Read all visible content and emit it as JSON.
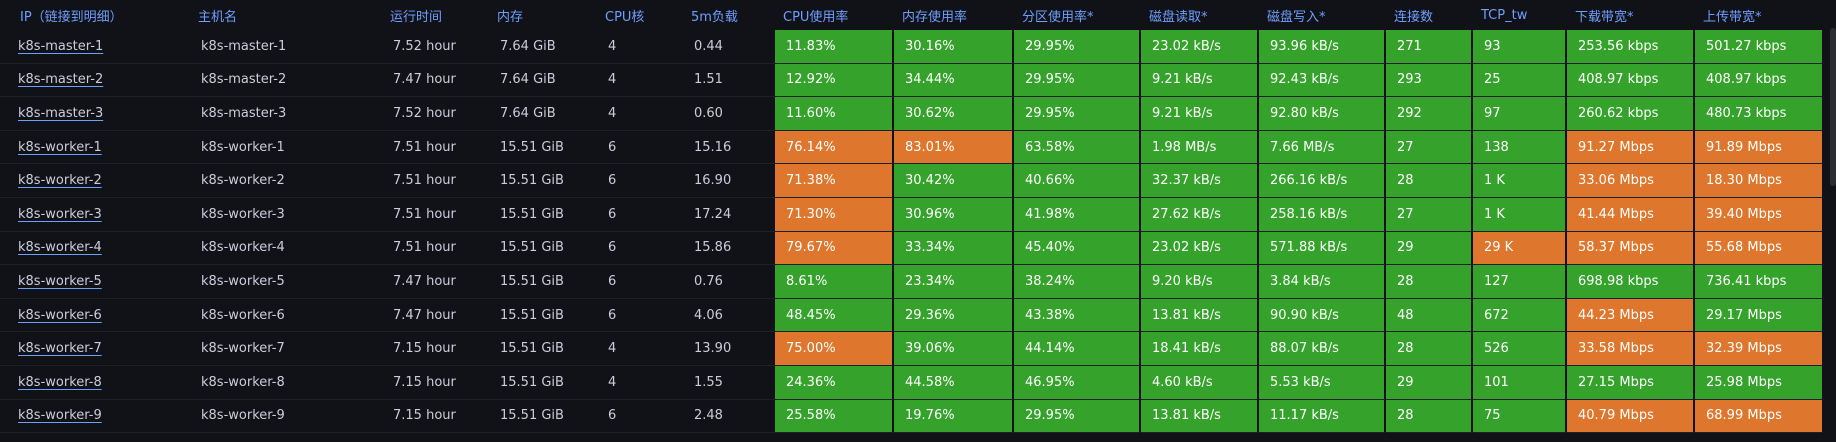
{
  "columns": [
    "IP（链接到明细）",
    "主机名",
    "运行时间",
    "内存",
    "CPU核",
    "5m负载",
    "CPU使用率",
    "内存使用率",
    "分区使用率*",
    "磁盘读取*",
    "磁盘写入*",
    "连接数",
    "TCP_tw",
    "下载带宽*",
    "上传带宽*"
  ],
  "colors": {
    "ok": "#35a32b",
    "warn": "#de772d",
    "header": "#6e9fff",
    "background": "#111217"
  },
  "rows": [
    {
      "ip": "k8s-master-1",
      "hostname": "k8s-master-1",
      "uptime": "7.52 hour",
      "memory": "7.64 GiB",
      "cpu_cores": "4",
      "load5": "0.44",
      "cpu_usage": "11.83%",
      "cpu_status": "ok",
      "mem_usage": "30.16%",
      "mem_status": "ok",
      "partition_usage": "29.95%",
      "part_status": "ok",
      "disk_read": "23.02 kB/s",
      "read_status": "ok",
      "disk_write": "93.96 kB/s",
      "write_status": "ok",
      "connections": "271",
      "conn_status": "ok",
      "tcp_tw": "93",
      "tw_status": "ok",
      "download": "253.56 kbps",
      "down_status": "ok",
      "upload": "501.27 kbps",
      "up_status": "ok"
    },
    {
      "ip": "k8s-master-2",
      "hostname": "k8s-master-2",
      "uptime": "7.47 hour",
      "memory": "7.64 GiB",
      "cpu_cores": "4",
      "load5": "1.51",
      "cpu_usage": "12.92%",
      "cpu_status": "ok",
      "mem_usage": "34.44%",
      "mem_status": "ok",
      "partition_usage": "29.95%",
      "part_status": "ok",
      "disk_read": "9.21 kB/s",
      "read_status": "ok",
      "disk_write": "92.43 kB/s",
      "write_status": "ok",
      "connections": "293",
      "conn_status": "ok",
      "tcp_tw": "25",
      "tw_status": "ok",
      "download": "408.97 kbps",
      "down_status": "ok",
      "upload": "408.97 kbps",
      "up_status": "ok"
    },
    {
      "ip": "k8s-master-3",
      "hostname": "k8s-master-3",
      "uptime": "7.52 hour",
      "memory": "7.64 GiB",
      "cpu_cores": "4",
      "load5": "0.60",
      "cpu_usage": "11.60%",
      "cpu_status": "ok",
      "mem_usage": "30.62%",
      "mem_status": "ok",
      "partition_usage": "29.95%",
      "part_status": "ok",
      "disk_read": "9.21 kB/s",
      "read_status": "ok",
      "disk_write": "92.80 kB/s",
      "write_status": "ok",
      "connections": "292",
      "conn_status": "ok",
      "tcp_tw": "97",
      "tw_status": "ok",
      "download": "260.62 kbps",
      "down_status": "ok",
      "upload": "480.73 kbps",
      "up_status": "ok"
    },
    {
      "ip": "k8s-worker-1",
      "hostname": "k8s-worker-1",
      "uptime": "7.51 hour",
      "memory": "15.51 GiB",
      "cpu_cores": "6",
      "load5": "15.16",
      "cpu_usage": "76.14%",
      "cpu_status": "warn",
      "mem_usage": "83.01%",
      "mem_status": "warn",
      "partition_usage": "63.58%",
      "part_status": "ok",
      "disk_read": "1.98 MB/s",
      "read_status": "ok",
      "disk_write": "7.66 MB/s",
      "write_status": "ok",
      "connections": "27",
      "conn_status": "ok",
      "tcp_tw": "138",
      "tw_status": "ok",
      "download": "91.27 Mbps",
      "down_status": "warn",
      "upload": "91.89 Mbps",
      "up_status": "warn"
    },
    {
      "ip": "k8s-worker-2",
      "hostname": "k8s-worker-2",
      "uptime": "7.51 hour",
      "memory": "15.51 GiB",
      "cpu_cores": "6",
      "load5": "16.90",
      "cpu_usage": "71.38%",
      "cpu_status": "warn",
      "mem_usage": "30.42%",
      "mem_status": "ok",
      "partition_usage": "40.66%",
      "part_status": "ok",
      "disk_read": "32.37 kB/s",
      "read_status": "ok",
      "disk_write": "266.16 kB/s",
      "write_status": "ok",
      "connections": "28",
      "conn_status": "ok",
      "tcp_tw": "1 K",
      "tw_status": "ok",
      "download": "33.06 Mbps",
      "down_status": "warn",
      "upload": "18.30 Mbps",
      "up_status": "warn"
    },
    {
      "ip": "k8s-worker-3",
      "hostname": "k8s-worker-3",
      "uptime": "7.51 hour",
      "memory": "15.51 GiB",
      "cpu_cores": "6",
      "load5": "17.24",
      "cpu_usage": "71.30%",
      "cpu_status": "warn",
      "mem_usage": "30.96%",
      "mem_status": "ok",
      "partition_usage": "41.98%",
      "part_status": "ok",
      "disk_read": "27.62 kB/s",
      "read_status": "ok",
      "disk_write": "258.16 kB/s",
      "write_status": "ok",
      "connections": "27",
      "conn_status": "ok",
      "tcp_tw": "1 K",
      "tw_status": "ok",
      "download": "41.44 Mbps",
      "down_status": "warn",
      "upload": "39.40 Mbps",
      "up_status": "warn"
    },
    {
      "ip": "k8s-worker-4",
      "hostname": "k8s-worker-4",
      "uptime": "7.51 hour",
      "memory": "15.51 GiB",
      "cpu_cores": "6",
      "load5": "15.86",
      "cpu_usage": "79.67%",
      "cpu_status": "warn",
      "mem_usage": "33.34%",
      "mem_status": "ok",
      "partition_usage": "45.40%",
      "part_status": "ok",
      "disk_read": "23.02 kB/s",
      "read_status": "ok",
      "disk_write": "571.88 kB/s",
      "write_status": "ok",
      "connections": "29",
      "conn_status": "ok",
      "tcp_tw": "29 K",
      "tw_status": "warn",
      "download": "58.37 Mbps",
      "down_status": "warn",
      "upload": "55.68 Mbps",
      "up_status": "warn"
    },
    {
      "ip": "k8s-worker-5",
      "hostname": "k8s-worker-5",
      "uptime": "7.47 hour",
      "memory": "15.51 GiB",
      "cpu_cores": "6",
      "load5": "0.76",
      "cpu_usage": "8.61%",
      "cpu_status": "ok",
      "mem_usage": "23.34%",
      "mem_status": "ok",
      "partition_usage": "38.24%",
      "part_status": "ok",
      "disk_read": "9.20 kB/s",
      "read_status": "ok",
      "disk_write": "3.84 kB/s",
      "write_status": "ok",
      "connections": "28",
      "conn_status": "ok",
      "tcp_tw": "127",
      "tw_status": "ok",
      "download": "698.98 kbps",
      "down_status": "ok",
      "upload": "736.41 kbps",
      "up_status": "ok"
    },
    {
      "ip": "k8s-worker-6",
      "hostname": "k8s-worker-6",
      "uptime": "7.47 hour",
      "memory": "15.51 GiB",
      "cpu_cores": "6",
      "load5": "4.06",
      "cpu_usage": "48.45%",
      "cpu_status": "ok",
      "mem_usage": "29.36%",
      "mem_status": "ok",
      "partition_usage": "43.38%",
      "part_status": "ok",
      "disk_read": "13.81 kB/s",
      "read_status": "ok",
      "disk_write": "90.90 kB/s",
      "write_status": "ok",
      "connections": "48",
      "conn_status": "ok",
      "tcp_tw": "672",
      "tw_status": "ok",
      "download": "44.23 Mbps",
      "down_status": "warn",
      "upload": "29.17 Mbps",
      "up_status": "ok"
    },
    {
      "ip": "k8s-worker-7",
      "hostname": "k8s-worker-7",
      "uptime": "7.15 hour",
      "memory": "15.51 GiB",
      "cpu_cores": "4",
      "load5": "13.90",
      "cpu_usage": "75.00%",
      "cpu_status": "warn",
      "mem_usage": "39.06%",
      "mem_status": "ok",
      "partition_usage": "44.14%",
      "part_status": "ok",
      "disk_read": "18.41 kB/s",
      "read_status": "ok",
      "disk_write": "88.07 kB/s",
      "write_status": "ok",
      "connections": "28",
      "conn_status": "ok",
      "tcp_tw": "526",
      "tw_status": "ok",
      "download": "33.58 Mbps",
      "down_status": "warn",
      "upload": "32.39 Mbps",
      "up_status": "warn"
    },
    {
      "ip": "k8s-worker-8",
      "hostname": "k8s-worker-8",
      "uptime": "7.15 hour",
      "memory": "15.51 GiB",
      "cpu_cores": "4",
      "load5": "1.55",
      "cpu_usage": "24.36%",
      "cpu_status": "ok",
      "mem_usage": "44.58%",
      "mem_status": "ok",
      "partition_usage": "46.95%",
      "part_status": "ok",
      "disk_read": "4.60 kB/s",
      "read_status": "ok",
      "disk_write": "5.53 kB/s",
      "write_status": "ok",
      "connections": "29",
      "conn_status": "ok",
      "tcp_tw": "101",
      "tw_status": "ok",
      "download": "27.15 Mbps",
      "down_status": "ok",
      "upload": "25.98 Mbps",
      "up_status": "ok"
    },
    {
      "ip": "k8s-worker-9",
      "hostname": "k8s-worker-9",
      "uptime": "7.15 hour",
      "memory": "15.51 GiB",
      "cpu_cores": "6",
      "load5": "2.48",
      "cpu_usage": "25.58%",
      "cpu_status": "ok",
      "mem_usage": "19.76%",
      "mem_status": "ok",
      "partition_usage": "29.95%",
      "part_status": "ok",
      "disk_read": "13.81 kB/s",
      "read_status": "ok",
      "disk_write": "11.17 kB/s",
      "write_status": "ok",
      "connections": "28",
      "conn_status": "ok",
      "tcp_tw": "75",
      "tw_status": "ok",
      "download": "40.79 Mbps",
      "down_status": "warn",
      "upload": "68.99 Mbps",
      "up_status": "warn"
    }
  ]
}
